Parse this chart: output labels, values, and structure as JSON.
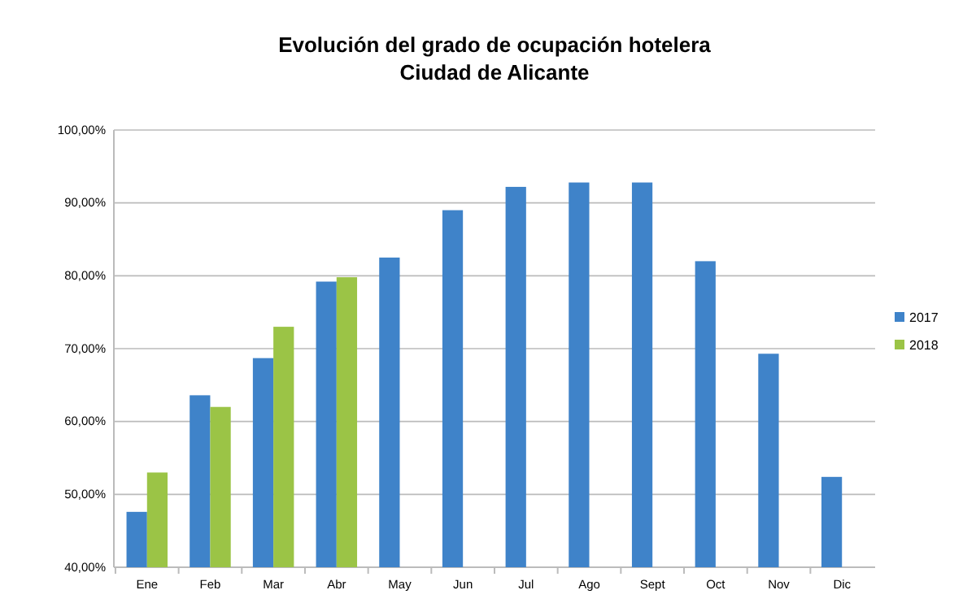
{
  "chart_data": {
    "type": "bar",
    "title": "Evolución del grado de ocupación hotelera\nCiudad de Alicante",
    "categories": [
      "Ene",
      "Feb",
      "Mar",
      "Abr",
      "May",
      "Jun",
      "Jul",
      "Ago",
      "Sept",
      "Oct",
      "Nov",
      "Dic"
    ],
    "series": [
      {
        "name": "2017",
        "color": "#3f83c9",
        "values": [
          47.6,
          63.6,
          68.7,
          79.2,
          82.5,
          89.0,
          92.2,
          92.8,
          92.8,
          82.0,
          69.3,
          52.4
        ]
      },
      {
        "name": "2018",
        "color": "#9bc446",
        "values": [
          53.0,
          62.0,
          73.0,
          79.8,
          null,
          null,
          null,
          null,
          null,
          null,
          null,
          null
        ]
      }
    ],
    "ylim": [
      40,
      100
    ],
    "yticks": [
      {
        "value": 40,
        "label": "40,00%"
      },
      {
        "value": 50,
        "label": "50,00%"
      },
      {
        "value": 60,
        "label": "60,00%"
      },
      {
        "value": 70,
        "label": "70,00%"
      },
      {
        "value": 80,
        "label": "80,00%"
      },
      {
        "value": 90,
        "label": "90,00%"
      },
      {
        "value": 100,
        "label": "100,00%"
      }
    ],
    "grid": "y",
    "legend": "right"
  }
}
